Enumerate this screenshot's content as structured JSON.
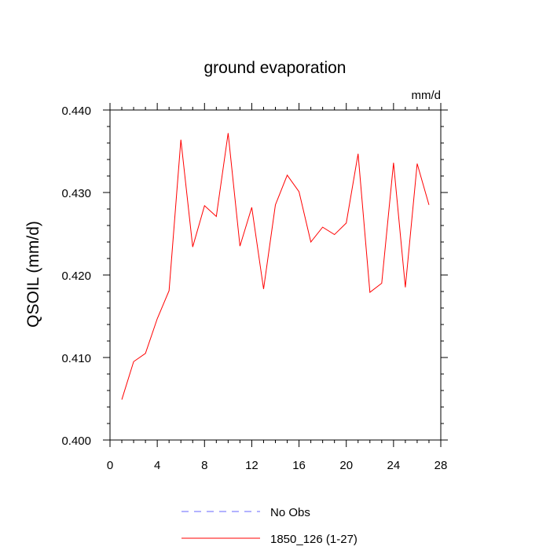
{
  "chart_data": {
    "type": "line",
    "title": "ground evaporation",
    "units_label": "mm/d",
    "ylabel": "QSOIL  (mm/d)",
    "xlabel": "",
    "xlim": [
      0,
      28
    ],
    "ylim": [
      0.4,
      0.44
    ],
    "x_ticks": [
      0,
      4,
      8,
      12,
      16,
      20,
      24,
      28
    ],
    "y_ticks": [
      "0.400",
      "0.410",
      "0.420",
      "0.430",
      "0.440"
    ],
    "series": [
      {
        "name": "1850_126 (1-27)",
        "color": "#ff0000",
        "x": [
          1,
          2,
          3,
          4,
          5,
          6,
          7,
          8,
          9,
          10,
          11,
          12,
          13,
          14,
          15,
          16,
          17,
          18,
          19,
          20,
          21,
          22,
          23,
          24,
          25,
          26,
          27
        ],
        "values": [
          0.4049,
          0.4095,
          0.4105,
          0.4147,
          0.4181,
          0.4364,
          0.4234,
          0.4284,
          0.4271,
          0.4372,
          0.4235,
          0.4282,
          0.4183,
          0.4285,
          0.4321,
          0.4301,
          0.424,
          0.4258,
          0.4249,
          0.4263,
          0.4347,
          0.4179,
          0.419,
          0.4336,
          0.4185,
          0.4335,
          0.4285
        ]
      }
    ],
    "legend": {
      "placement": "bottom",
      "entries": [
        {
          "label": "No Obs",
          "color": "#6666ff",
          "style": "dashed"
        },
        {
          "label": "1850_126 (1-27)",
          "color": "#ff0000",
          "style": "solid"
        }
      ]
    },
    "grid": false
  }
}
